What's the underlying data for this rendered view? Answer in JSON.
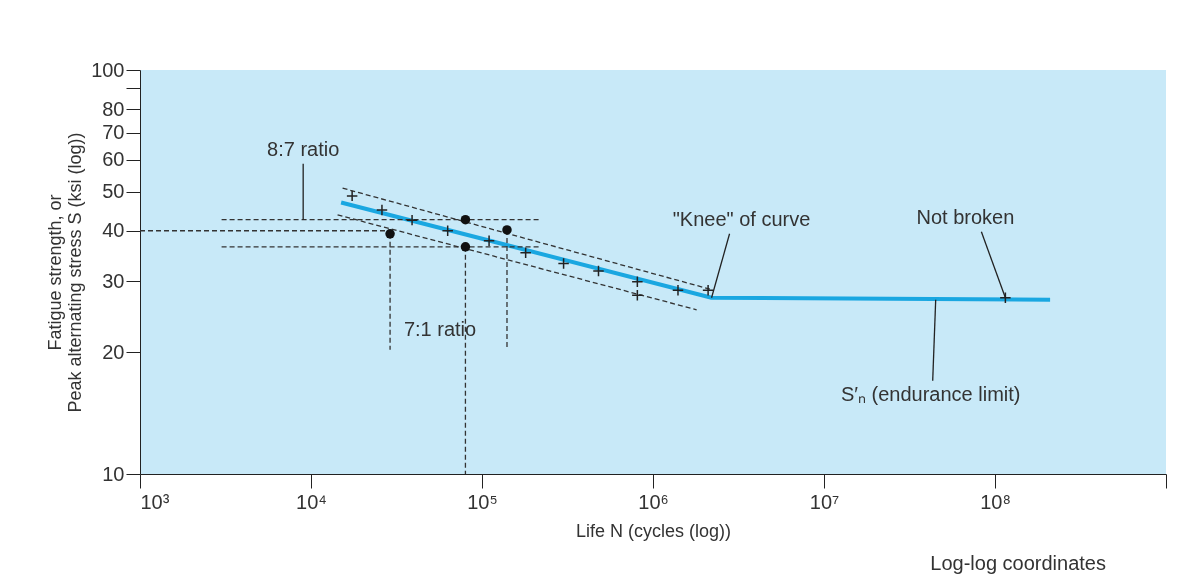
{
  "chart_data": {
    "type": "line",
    "xlabel": "Life N (cycles (log))",
    "ylabel": "Fatigue strength, or\nPeak alternating stress S (ksi (log))",
    "log": "xy",
    "grid": false,
    "xlim": [
      1000,
      1000000000
    ],
    "ylim": [
      10,
      100
    ],
    "xticks": [
      {
        "value": 1000,
        "label": "10³"
      },
      {
        "value": 10000,
        "label": "10⁴"
      },
      {
        "value": 100000,
        "label": "10⁵"
      },
      {
        "value": 1000000,
        "label": "10⁶"
      },
      {
        "value": 10000000,
        "label": "10⁷"
      },
      {
        "value": 100000000,
        "label": "10⁸"
      },
      {
        "value": 1000000000,
        "label": null
      }
    ],
    "yticks": [
      10,
      20,
      30,
      40,
      50,
      60,
      70,
      80,
      {
        "value": 90,
        "label": null
      },
      100
    ],
    "series": [
      {
        "color": "#1aa7e1",
        "marker": "none",
        "line_style": "solid",
        "x": [
          15000,
          2200000,
          210000000
        ],
        "values": [
          47,
          27.3,
          27
        ]
      },
      {
        "type": "line",
        "color": "#333333",
        "marker": "none",
        "line_style": "dashed",
        "x": [
          15300,
          2200000
        ],
        "values": [
          51,
          28.6
        ]
      },
      {
        "type": "line",
        "color": "#333333",
        "marker": "none",
        "line_style": "dashed",
        "x": [
          14300,
          1800000
        ],
        "values": [
          43.8,
          25.5
        ]
      },
      {
        "type": "line",
        "color": "#333333",
        "marker": "none",
        "line_style": "dashed",
        "x": [
          3000,
          220000
        ],
        "values": [
          42.6,
          42.6
        ]
      },
      {
        "type": "line",
        "color": "#333333",
        "marker": "none",
        "line_style": "dashed",
        "x": [
          3000,
          220000
        ],
        "values": [
          36.5,
          36.5
        ]
      },
      {
        "type": "line",
        "color": "#333333",
        "marker": "none",
        "line_style": "dashed",
        "x": [
          1000,
          29000
        ],
        "values": [
          40,
          40
        ]
      },
      {
        "type": "line",
        "color": "#333333",
        "marker": "none",
        "line_style": "dashed",
        "x": [
          29000,
          29000
        ],
        "values": [
          39.3,
          20.3
        ]
      },
      {
        "type": "line",
        "color": "#333333",
        "marker": "none",
        "line_style": "dashed",
        "x": [
          80000,
          80000
        ],
        "values": [
          36.5,
          10
        ]
      },
      {
        "type": "line",
        "color": "#333333",
        "marker": "none",
        "line_style": "dashed",
        "x": [
          140000,
          140000
        ],
        "values": [
          40.2,
          20.3
        ]
      },
      {
        "type": "scatter",
        "color": "#222222",
        "marker": "cross",
        "x": [
          17400,
          26000,
          39000,
          63000,
          110000,
          180000,
          300000,
          480000,
          810000,
          810000,
          1400000,
          2100000,
          115000000
        ],
        "values": [
          48.8,
          45,
          42.5,
          40,
          37.8,
          35.3,
          33.2,
          31.8,
          29.9,
          27.7,
          28.5,
          28.5,
          27.3
        ]
      },
      {
        "type": "scatter",
        "color": "#111111",
        "marker": "circle",
        "x": [
          29000,
          80000,
          80000,
          140000
        ],
        "values": [
          39.3,
          42.6,
          36.5,
          40.2
        ]
      }
    ],
    "annotations": [
      {
        "text": "8:7 ratio",
        "x": 9000,
        "y": 42.6
      },
      "7:1 ratio",
      {
        "text": "\"Knee\" of curve",
        "x": 2200000,
        "y": 27.3
      },
      {
        "text": "Not broken",
        "x": 115000000,
        "y": 27.3
      },
      {
        "text": "S′ₙ (endurance limit)",
        "x": 45000000,
        "y": 27
      },
      "Log-log coordinates"
    ]
  }
}
